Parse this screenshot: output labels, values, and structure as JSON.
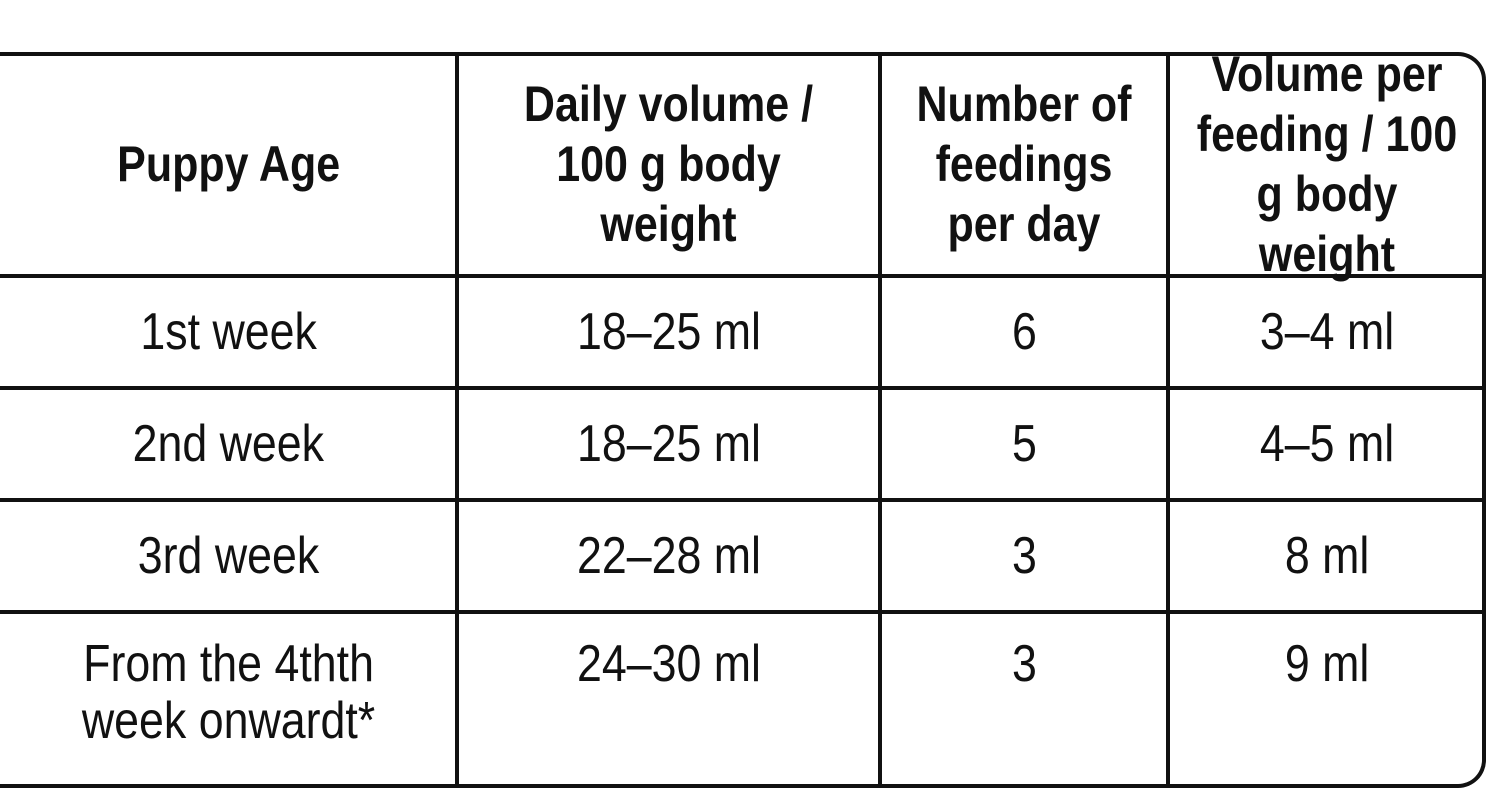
{
  "table": {
    "header": [
      "Puppy Age",
      "Daily volume /\n100 g body weight",
      "Number of\nfeedings\nper day",
      "Volume per\nfeeding / 100\ng body weight"
    ],
    "rows": [
      [
        "1st week",
        "18–25 ml",
        "6",
        "3–4 ml"
      ],
      [
        "2nd week",
        "18–25 ml",
        "5",
        "4–5 ml"
      ],
      [
        "3rd week",
        "22–28 ml",
        "3",
        "8 ml"
      ],
      [
        "From the 4thth\nweek onwardt*",
        "24–30 ml",
        "3",
        "9 ml"
      ]
    ]
  }
}
